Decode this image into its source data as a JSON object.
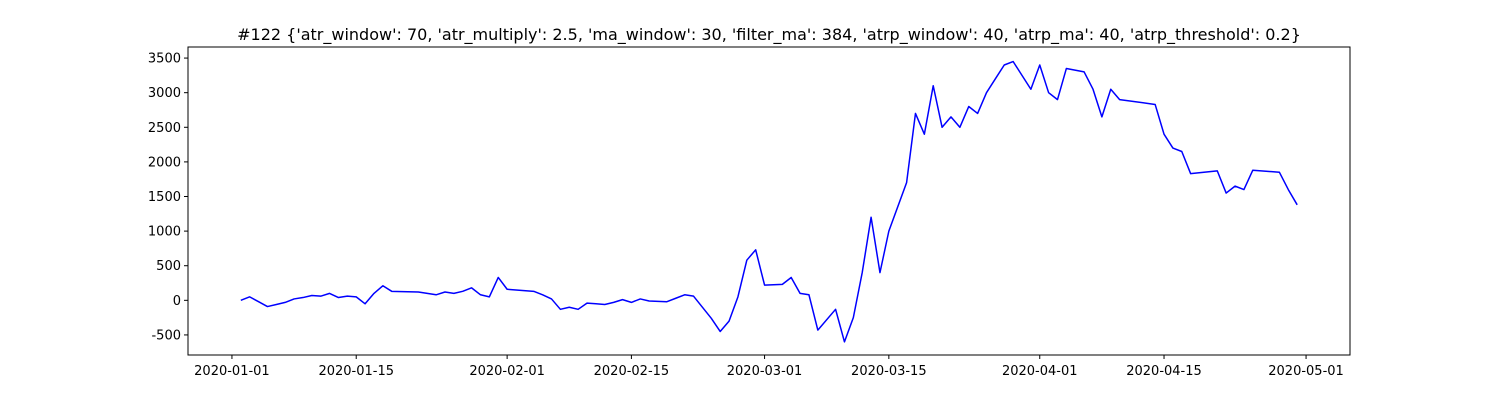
{
  "chart_data": {
    "type": "line",
    "title": "#122 {'atr_window': 70, 'atr_multiply': 2.5, 'ma_window': 30, 'filter_ma': 384, 'atrp_window': 40, 'atrp_ma': 40, 'atrp_threshold': 0.2}",
    "x": [
      "2020-01-02",
      "2020-01-03",
      "2020-01-04",
      "2020-01-05",
      "2020-01-06",
      "2020-01-07",
      "2020-01-08",
      "2020-01-09",
      "2020-01-10",
      "2020-01-11",
      "2020-01-12",
      "2020-01-13",
      "2020-01-14",
      "2020-01-15",
      "2020-01-16",
      "2020-01-17",
      "2020-01-18",
      "2020-01-19",
      "2020-01-22",
      "2020-01-23",
      "2020-01-24",
      "2020-01-25",
      "2020-01-26",
      "2020-01-27",
      "2020-01-28",
      "2020-01-29",
      "2020-01-30",
      "2020-01-31",
      "2020-02-01",
      "2020-02-04",
      "2020-02-05",
      "2020-02-06",
      "2020-02-07",
      "2020-02-08",
      "2020-02-09",
      "2020-02-10",
      "2020-02-11",
      "2020-02-12",
      "2020-02-13",
      "2020-02-14",
      "2020-02-15",
      "2020-02-16",
      "2020-02-17",
      "2020-02-19",
      "2020-02-20",
      "2020-02-21",
      "2020-02-22",
      "2020-02-24",
      "2020-02-25",
      "2020-02-26",
      "2020-02-27",
      "2020-02-28",
      "2020-02-29",
      "2020-03-01",
      "2020-03-03",
      "2020-03-04",
      "2020-03-05",
      "2020-03-06",
      "2020-03-07",
      "2020-03-09",
      "2020-03-10",
      "2020-03-11",
      "2020-03-12",
      "2020-03-13",
      "2020-03-14",
      "2020-03-15",
      "2020-03-17",
      "2020-03-18",
      "2020-03-19",
      "2020-03-20",
      "2020-03-21",
      "2020-03-22",
      "2020-03-23",
      "2020-03-24",
      "2020-03-25",
      "2020-03-26",
      "2020-03-27",
      "2020-03-28",
      "2020-03-29",
      "2020-03-31",
      "2020-04-01",
      "2020-04-02",
      "2020-04-03",
      "2020-04-04",
      "2020-04-06",
      "2020-04-07",
      "2020-04-08",
      "2020-04-09",
      "2020-04-10",
      "2020-04-14",
      "2020-04-15",
      "2020-04-16",
      "2020-04-17",
      "2020-04-18",
      "2020-04-21",
      "2020-04-22",
      "2020-04-23",
      "2020-04-24",
      "2020-04-25",
      "2020-04-28",
      "2020-04-29",
      "2020-04-30"
    ],
    "series": [
      {
        "color": "#0000ff",
        "values": [
          0,
          50,
          -20,
          -90,
          -60,
          -30,
          20,
          40,
          70,
          60,
          100,
          40,
          60,
          50,
          -50,
          100,
          210,
          130,
          120,
          100,
          80,
          120,
          100,
          130,
          180,
          80,
          50,
          330,
          160,
          130,
          80,
          20,
          -130,
          -100,
          -130,
          -40,
          -50,
          -60,
          -30,
          10,
          -30,
          20,
          -10,
          -20,
          30,
          80,
          60,
          -260,
          -450,
          -300,
          50,
          580,
          730,
          220,
          230,
          330,
          100,
          80,
          -430,
          -130,
          -600,
          -250,
          400,
          1200,
          400,
          1000,
          1700,
          2700,
          2400,
          3100,
          2500,
          2650,
          2500,
          2800,
          2700,
          3000,
          3200,
          3400,
          3450,
          3050,
          3400,
          3000,
          2900,
          3350,
          3300,
          3050,
          2650,
          3050,
          2900,
          2830,
          2400,
          2200,
          2150,
          1830,
          1870,
          1550,
          1650,
          1600,
          1880,
          1850,
          1600,
          1380
        ]
      }
    ],
    "xticks": [
      "2020-01-01",
      "2020-01-15",
      "2020-02-01",
      "2020-02-15",
      "2020-03-01",
      "2020-03-15",
      "2020-04-01",
      "2020-04-15",
      "2020-05-01"
    ],
    "ylim": [
      -790,
      3660
    ],
    "yticks": [
      -500,
      0,
      500,
      1000,
      1500,
      2000,
      2500,
      3000,
      3500
    ]
  }
}
